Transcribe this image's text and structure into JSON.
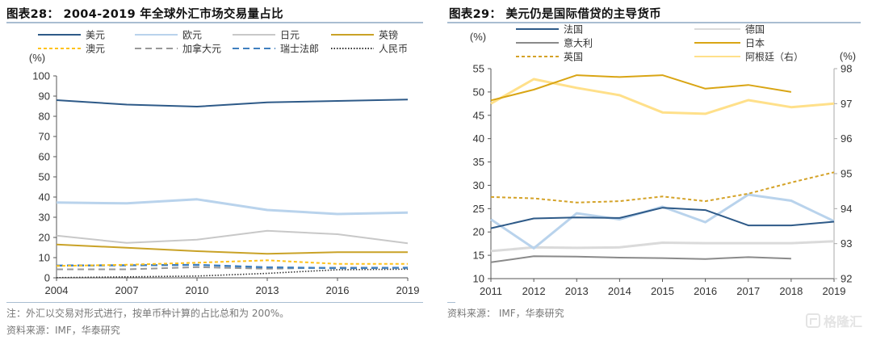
{
  "left": {
    "title": "图表28：  2004-2019 年全球外汇市场交易量占比",
    "note": "注：外汇以交易对形式进行，按单币种计算的占比总和为 200%。",
    "source": "资料来源：IMF，华泰研究"
  },
  "right": {
    "title": "图表29：  美元仍是国际借贷的主导货币",
    "source": "资料来源：  IMF，华泰研究"
  },
  "watermark": "格隆汇",
  "chart_data": [
    {
      "type": "line",
      "title": "2004-2019 年全球外汇市场交易量占比",
      "ylabel": "(%)",
      "xlabel": "",
      "x": [
        "2004",
        "2007",
        "2010",
        "2013",
        "2016",
        "2019"
      ],
      "ylim": [
        0,
        100
      ],
      "yticks": [
        "0",
        "10",
        "20",
        "30",
        "40",
        "50",
        "60",
        "70",
        "80",
        "90",
        "100"
      ],
      "grid": false,
      "legend_position": "top",
      "series": [
        {
          "name": "美元",
          "color": "#2e5a88",
          "style": "solid",
          "values": [
            88.0,
            85.8,
            84.8,
            86.9,
            87.6,
            88.3
          ]
        },
        {
          "name": "欧元",
          "color": "#b9d3ec",
          "style": "solid",
          "values": [
            37.3,
            36.9,
            38.9,
            33.6,
            31.6,
            32.3
          ]
        },
        {
          "name": "日元",
          "color": "#c8c8c8",
          "style": "solid",
          "values": [
            20.9,
            17.3,
            18.9,
            23.3,
            21.6,
            17.1
          ]
        },
        {
          "name": "英镑",
          "color": "#c9a227",
          "style": "solid",
          "values": [
            16.5,
            14.9,
            13.2,
            11.9,
            12.7,
            12.7
          ]
        },
        {
          "name": "澳元",
          "color": "#ffc21a",
          "style": "dash-short",
          "values": [
            5.9,
            6.5,
            7.5,
            8.7,
            6.9,
            6.9
          ]
        },
        {
          "name": "加拿大元",
          "color": "#999999",
          "style": "dash-long",
          "values": [
            4.2,
            4.2,
            5.3,
            4.5,
            5.1,
            5.0
          ]
        },
        {
          "name": "瑞士法郎",
          "color": "#3f7fbf",
          "style": "dash-long",
          "values": [
            6.1,
            6.2,
            6.4,
            5.2,
            4.8,
            5.0
          ]
        },
        {
          "name": "人民币",
          "color": "#333333",
          "style": "dotted",
          "values": [
            0.1,
            0.5,
            0.9,
            2.2,
            4.0,
            4.3
          ]
        }
      ]
    },
    {
      "type": "line",
      "title": "美元仍是国际借贷的主导货币",
      "ylabel": "(%)",
      "y2label": "(%)",
      "x": [
        "2011",
        "2012",
        "2013",
        "2014",
        "2015",
        "2016",
        "2017",
        "2018",
        "2019"
      ],
      "ylim": [
        10,
        55
      ],
      "yticks": [
        "10",
        "15",
        "20",
        "25",
        "30",
        "35",
        "40",
        "45",
        "50",
        "55"
      ],
      "y2lim": [
        92,
        98
      ],
      "y2ticks": [
        "92",
        "93",
        "94",
        "95",
        "96",
        "97",
        "98"
      ],
      "grid": false,
      "legend_position": "top",
      "series": [
        {
          "name": "法国",
          "color": "#2e5a88",
          "style": "solid",
          "axis": "left",
          "values": [
            20.8,
            22.9,
            23.1,
            23.0,
            25.2,
            24.7,
            21.4,
            21.4,
            22.2
          ]
        },
        {
          "name": "德国",
          "color": "#dadada",
          "style": "solid",
          "axis": "left",
          "values": [
            15.9,
            16.7,
            16.6,
            16.7,
            17.7,
            17.6,
            17.6,
            17.6,
            18.0
          ]
        },
        {
          "name": "意大利",
          "color": "#8a8a8a",
          "style": "solid",
          "axis": "left",
          "values": [
            13.5,
            14.8,
            14.7,
            14.5,
            14.4,
            14.2,
            14.6,
            14.3,
            null
          ]
        },
        {
          "name": "日本",
          "color": "#d9a514",
          "style": "solid",
          "axis": "left",
          "values": [
            48.2,
            50.5,
            53.6,
            53.2,
            53.6,
            50.7,
            51.5,
            50.0,
            null
          ]
        },
        {
          "name": "英国",
          "color": "#d4a227",
          "style": "dash-short",
          "axis": "left",
          "values": [
            27.5,
            27.2,
            26.3,
            26.6,
            27.6,
            26.6,
            28.2,
            30.6,
            32.8
          ]
        },
        {
          "name": "阿根廷（右）",
          "color": "#ffe08a",
          "style": "solid",
          "axis": "right",
          "values": [
            97.0,
            97.7,
            97.45,
            97.24,
            96.75,
            96.71,
            97.1,
            96.9,
            97.0
          ]
        },
        {
          "name": "",
          "color": "#b9d3ec",
          "style": "solid",
          "axis": "left",
          "in_legend": false,
          "values": [
            22.7,
            16.5,
            24.0,
            22.7,
            25.4,
            22.1,
            28.0,
            26.7,
            22.3
          ]
        }
      ]
    }
  ]
}
